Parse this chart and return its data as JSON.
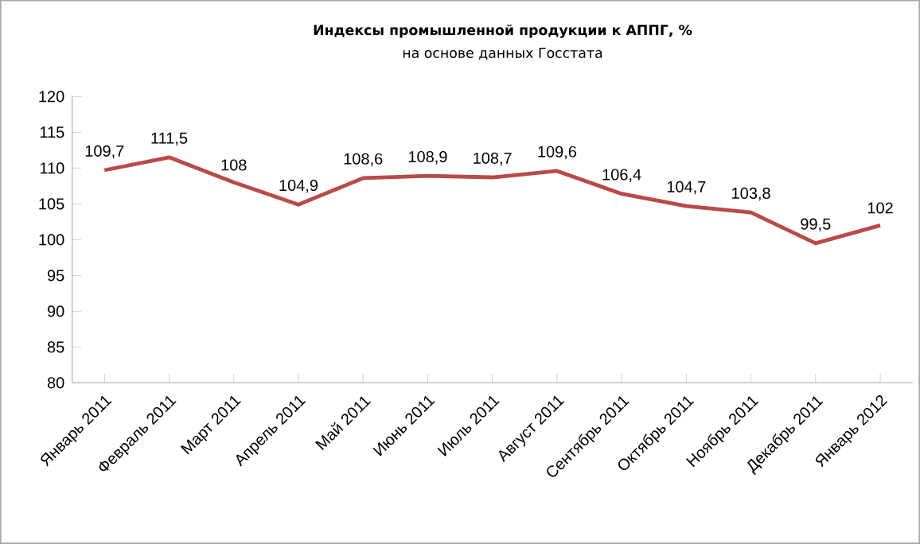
{
  "chart_data": {
    "type": "line",
    "title": "Индексы промышленной продукции к АППГ, %",
    "subtitle": "на основе данных Госстата",
    "categories": [
      "Январь 2011",
      "Февраль 2011",
      "Март 2011",
      "Апрель 2011",
      "Май 2011",
      "Июнь 2011",
      "Июль 2011",
      "Август 2011",
      "Сентябрь 2011",
      "Октябрь 2011",
      "Ноябрь 2011",
      "Декабрь 2011",
      "Январь 2012"
    ],
    "series": [
      {
        "color": "#b94a48",
        "values": [
          109.7,
          111.5,
          108,
          104.9,
          108.6,
          108.9,
          108.7,
          109.6,
          106.4,
          104.7,
          103.8,
          99.5,
          102
        ],
        "value_labels": [
          "109,7",
          "111,5",
          "108",
          "104,9",
          "108,6",
          "108,9",
          "108,7",
          "109,6",
          "106,4",
          "104,7",
          "103,8",
          "99,5",
          "102"
        ]
      }
    ],
    "ylim": [
      80,
      120
    ],
    "yticks": [
      80,
      85,
      90,
      95,
      100,
      105,
      110,
      115,
      120
    ]
  }
}
